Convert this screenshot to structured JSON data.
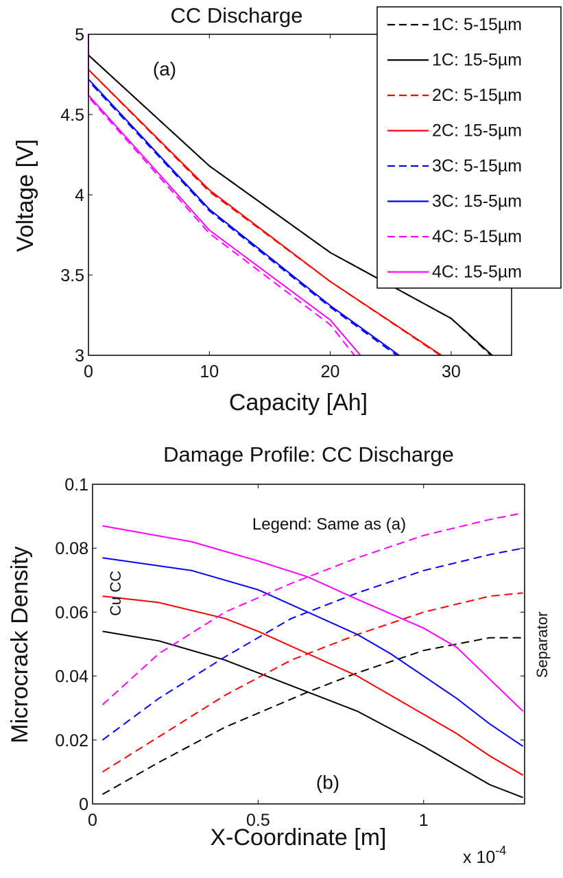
{
  "chart_data": [
    {
      "type": "line",
      "panel_label": "(a)",
      "title": "CC Discharge",
      "xlabel": "Capacity [Ah]",
      "ylabel": "Voltage [V]",
      "xlim": [
        0,
        35
      ],
      "ylim": [
        3,
        5
      ],
      "xticks": [
        "0",
        "10",
        "20",
        "30"
      ],
      "xtick_values": [
        0,
        10,
        20,
        30
      ],
      "yticks": [
        "3",
        "3.5",
        "4",
        "4.5",
        "5"
      ],
      "ytick_values": [
        3,
        3.5,
        4,
        4.5,
        5
      ],
      "grid": false,
      "legend_position": "top-right",
      "series": [
        {
          "name": "1C: 5-15µm",
          "color": "#000000",
          "dash": true,
          "x": [
            0,
            0,
            10,
            20,
            30,
            33.3
          ],
          "y": [
            5,
            4.87,
            4.18,
            3.64,
            3.23,
            3.0
          ]
        },
        {
          "name": "1C: 15-5µm",
          "color": "#000000",
          "dash": false,
          "x": [
            0,
            0,
            10,
            20,
            30,
            33.4
          ],
          "y": [
            5,
            4.87,
            4.18,
            3.64,
            3.23,
            3.0
          ]
        },
        {
          "name": "2C: 5-15µm",
          "color": "#ff0000",
          "dash": true,
          "x": [
            0,
            0,
            10,
            20,
            29.1
          ],
          "y": [
            5,
            4.78,
            4.02,
            3.46,
            3.0
          ]
        },
        {
          "name": "2C: 15-5µm",
          "color": "#ff0000",
          "dash": false,
          "x": [
            0,
            0,
            10,
            20,
            29.2
          ],
          "y": [
            5,
            4.78,
            4.03,
            3.46,
            3.0
          ]
        },
        {
          "name": "3C: 5-15µm",
          "color": "#0000ff",
          "dash": true,
          "x": [
            0,
            0,
            10,
            20,
            25.5
          ],
          "y": [
            5,
            4.71,
            3.9,
            3.3,
            3.0
          ]
        },
        {
          "name": "3C: 15-5µm",
          "color": "#0000ff",
          "dash": false,
          "x": [
            0,
            0,
            10,
            20,
            25.7
          ],
          "y": [
            5,
            4.72,
            3.91,
            3.31,
            3.0
          ]
        },
        {
          "name": "4C: 5-15µm",
          "color": "#ff00ff",
          "dash": true,
          "x": [
            0,
            0,
            10,
            20,
            22.0
          ],
          "y": [
            5,
            4.61,
            3.76,
            3.19,
            3.0
          ]
        },
        {
          "name": "4C: 15-5µm",
          "color": "#ff00ff",
          "dash": false,
          "x": [
            0,
            0,
            10,
            20,
            22.5
          ],
          "y": [
            5,
            4.62,
            3.78,
            3.22,
            3.0
          ]
        }
      ]
    },
    {
      "type": "line",
      "panel_label": "(b)",
      "title": "Damage Profile: CC Discharge",
      "xlabel": "X-Coordinate [m]",
      "x_multiplier": "x 10",
      "x_multiplier_exp": "-4",
      "ylabel": "Microcrack Density",
      "xlim": [
        0,
        1.305
      ],
      "ylim": [
        0,
        0.1
      ],
      "xticks": [
        "0",
        "0.5",
        "1"
      ],
      "xtick_values": [
        0,
        0.5,
        1
      ],
      "yticks": [
        "0",
        "0.02",
        "0.04",
        "0.06",
        "0.08",
        "0.1"
      ],
      "ytick_values": [
        0,
        0.02,
        0.04,
        0.06,
        0.08,
        0.1
      ],
      "grid": false,
      "annotations": [
        "Legend: Same as (a)",
        "Cu CC",
        "Separator"
      ],
      "series": [
        {
          "name": "1C: 5-15µm",
          "color": "#000000",
          "dash": true,
          "x": [
            0.03,
            0.2,
            0.4,
            0.65,
            0.8,
            1.0,
            1.2,
            1.3
          ],
          "y": [
            0.003,
            0.013,
            0.024,
            0.035,
            0.041,
            0.048,
            0.052,
            0.052
          ]
        },
        {
          "name": "1C: 15-5µm",
          "color": "#000000",
          "dash": false,
          "x": [
            0.03,
            0.2,
            0.4,
            0.5,
            0.65,
            0.8,
            1.0,
            1.1,
            1.2,
            1.3
          ],
          "y": [
            0.054,
            0.051,
            0.045,
            0.041,
            0.035,
            0.029,
            0.018,
            0.012,
            0.006,
            0.002
          ]
        },
        {
          "name": "2C: 5-15µm",
          "color": "#ff0000",
          "dash": true,
          "x": [
            0.03,
            0.2,
            0.4,
            0.6,
            0.8,
            1.0,
            1.2,
            1.3
          ],
          "y": [
            0.01,
            0.021,
            0.034,
            0.045,
            0.053,
            0.06,
            0.065,
            0.066
          ]
        },
        {
          "name": "2C: 15-5µm",
          "color": "#ff0000",
          "dash": false,
          "x": [
            0.03,
            0.2,
            0.4,
            0.5,
            0.65,
            0.8,
            1.0,
            1.1,
            1.2,
            1.3
          ],
          "y": [
            0.065,
            0.063,
            0.058,
            0.054,
            0.047,
            0.04,
            0.028,
            0.022,
            0.015,
            0.009
          ]
        },
        {
          "name": "3C: 5-15µm",
          "color": "#0000ff",
          "dash": true,
          "x": [
            0.03,
            0.2,
            0.4,
            0.6,
            0.8,
            1.0,
            1.2,
            1.3
          ],
          "y": [
            0.02,
            0.033,
            0.046,
            0.058,
            0.066,
            0.073,
            0.078,
            0.08
          ]
        },
        {
          "name": "3C: 15-5µm",
          "color": "#0000ff",
          "dash": false,
          "x": [
            0.03,
            0.3,
            0.5,
            0.65,
            0.8,
            0.9,
            1.0,
            1.1,
            1.2,
            1.3
          ],
          "y": [
            0.077,
            0.073,
            0.067,
            0.06,
            0.053,
            0.047,
            0.04,
            0.033,
            0.025,
            0.018
          ]
        },
        {
          "name": "4C: 5-15µm",
          "color": "#ff00ff",
          "dash": true,
          "x": [
            0.03,
            0.2,
            0.4,
            0.6,
            0.8,
            1.0,
            1.2,
            1.3
          ],
          "y": [
            0.031,
            0.047,
            0.06,
            0.069,
            0.077,
            0.084,
            0.089,
            0.091
          ]
        },
        {
          "name": "4C: 15-5µm",
          "color": "#ff00ff",
          "dash": false,
          "x": [
            0.03,
            0.3,
            0.5,
            0.65,
            0.8,
            1.0,
            1.1,
            1.2,
            1.3
          ],
          "y": [
            0.087,
            0.082,
            0.076,
            0.071,
            0.064,
            0.055,
            0.049,
            0.039,
            0.029
          ]
        }
      ]
    }
  ]
}
